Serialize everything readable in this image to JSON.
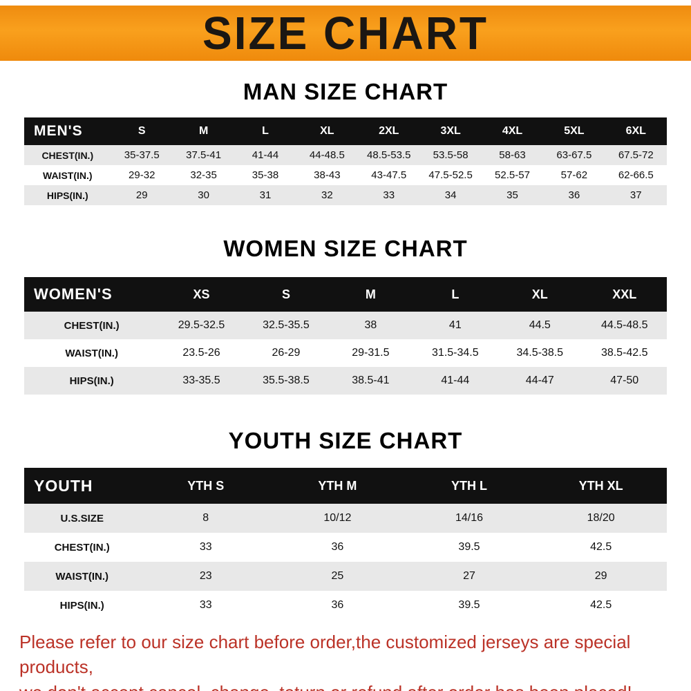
{
  "banner": {
    "title": "SIZE CHART",
    "bg_color": "#f39414",
    "text_color": "#1b1713"
  },
  "colors": {
    "table_header_bg": "#111111",
    "table_header_text": "#ffffff",
    "row_stripe": "#e8e8e8",
    "footer_text": "#bb3227"
  },
  "chart_data": [
    {
      "type": "table",
      "title": "MAN SIZE CHART",
      "header": [
        "MEN'S",
        "S",
        "M",
        "L",
        "XL",
        "2XL",
        "3XL",
        "4XL",
        "5XL",
        "6XL"
      ],
      "rows": [
        [
          "CHEST(IN.)",
          "35-37.5",
          "37.5-41",
          "41-44",
          "44-48.5",
          "48.5-53.5",
          "53.5-58",
          "58-63",
          "63-67.5",
          "67.5-72"
        ],
        [
          "WAIST(IN.)",
          "29-32",
          "32-35",
          "35-38",
          "38-43",
          "43-47.5",
          "47.5-52.5",
          "52.5-57",
          "57-62",
          "62-66.5"
        ],
        [
          "HIPS(IN.)",
          "29",
          "30",
          "31",
          "32",
          "33",
          "34",
          "35",
          "36",
          "37"
        ]
      ]
    },
    {
      "type": "table",
      "title": "WOMEN SIZE CHART",
      "header": [
        "WOMEN'S",
        "XS",
        "S",
        "M",
        "L",
        "XL",
        "XXL"
      ],
      "rows": [
        [
          "CHEST(IN.)",
          "29.5-32.5",
          "32.5-35.5",
          "38",
          "41",
          "44.5",
          "44.5-48.5"
        ],
        [
          "WAIST(IN.)",
          "23.5-26",
          "26-29",
          "29-31.5",
          "31.5-34.5",
          "34.5-38.5",
          "38.5-42.5"
        ],
        [
          "HIPS(IN.)",
          "33-35.5",
          "35.5-38.5",
          "38.5-41",
          "41-44",
          "44-47",
          "47-50"
        ]
      ]
    },
    {
      "type": "table",
      "title": "YOUTH SIZE CHART",
      "header": [
        "YOUTH",
        "YTH S",
        "YTH M",
        "YTH L",
        "YTH XL"
      ],
      "rows": [
        [
          "U.S.SIZE",
          "8",
          "10/12",
          "14/16",
          "18/20"
        ],
        [
          "CHEST(IN.)",
          "33",
          "36",
          "39.5",
          "42.5"
        ],
        [
          "WAIST(IN.)",
          "23",
          "25",
          "27",
          "29"
        ],
        [
          "HIPS(IN.)",
          "33",
          "36",
          "39.5",
          "42.5"
        ]
      ]
    }
  ],
  "footer": {
    "line1": "Please refer to our size chart before order,the customized jerseys are special products,",
    "line2": "we don't accept cancel, change, teturn or refund after order has been placed!"
  }
}
